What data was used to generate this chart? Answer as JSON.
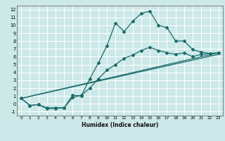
{
  "xlabel": "Humidex (Indice chaleur)",
  "ylabel": "",
  "bg_color": "#cce8e8",
  "grid_color": "#ffffff",
  "line_color": "#1a6b6b",
  "xlim": [
    -0.5,
    23.5
  ],
  "ylim": [
    -1.5,
    12.5
  ],
  "xticks": [
    0,
    1,
    2,
    3,
    4,
    5,
    6,
    7,
    8,
    9,
    10,
    11,
    12,
    13,
    14,
    15,
    16,
    17,
    18,
    19,
    20,
    21,
    22,
    23
  ],
  "yticks": [
    -1,
    0,
    1,
    2,
    3,
    4,
    5,
    6,
    7,
    8,
    9,
    10,
    11,
    12
  ],
  "line1_x": [
    0,
    1,
    2,
    3,
    4,
    5,
    6,
    7,
    8,
    9,
    10,
    11,
    12,
    13,
    14,
    15,
    16,
    17,
    18,
    19,
    20,
    21,
    22,
    23
  ],
  "line1_y": [
    0.7,
    -0.2,
    -0.1,
    -0.6,
    -0.6,
    -0.5,
    1.1,
    1.0,
    3.2,
    5.2,
    7.4,
    10.3,
    9.2,
    10.5,
    11.5,
    11.8,
    10.0,
    9.7,
    8.0,
    8.0,
    6.9,
    6.6,
    6.4,
    6.5
  ],
  "line2_x": [
    0,
    1,
    2,
    3,
    4,
    5,
    6,
    7,
    8,
    9,
    10,
    11,
    12,
    13,
    14,
    15,
    16,
    17,
    18,
    19,
    20,
    21,
    22,
    23
  ],
  "line2_y": [
    0.7,
    -0.2,
    -0.1,
    -0.5,
    -0.5,
    -0.5,
    0.8,
    1.1,
    2.0,
    3.2,
    4.3,
    5.0,
    5.8,
    6.2,
    6.8,
    7.2,
    6.8,
    6.5,
    6.3,
    6.5,
    6.0,
    6.3,
    6.4,
    6.5
  ],
  "line3_x": [
    0,
    23
  ],
  "line3_y": [
    0.7,
    6.5
  ],
  "line4_x": [
    0,
    23
  ],
  "line4_y": [
    0.7,
    6.3
  ]
}
